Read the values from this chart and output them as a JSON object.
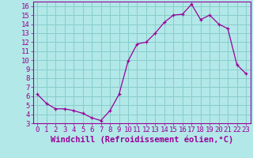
{
  "x": [
    0,
    1,
    2,
    3,
    4,
    5,
    6,
    7,
    8,
    9,
    10,
    11,
    12,
    13,
    14,
    15,
    16,
    17,
    18,
    19,
    20,
    21,
    22,
    23
  ],
  "y": [
    6.2,
    5.2,
    4.6,
    4.6,
    4.4,
    4.1,
    3.6,
    3.3,
    4.4,
    6.2,
    9.9,
    11.8,
    12.0,
    13.0,
    14.2,
    15.0,
    15.1,
    16.2,
    14.5,
    15.0,
    14.0,
    13.5,
    9.5,
    8.5
  ],
  "line_color": "#990099",
  "marker": "+",
  "bg_color": "#b3e8e8",
  "grid_color": "#88cccc",
  "xlabel": "Windchill (Refroidissement éolien,°C)",
  "xlabel_color": "#990099",
  "tick_color": "#990099",
  "spine_color": "#990099",
  "xlim": [
    -0.5,
    23.5
  ],
  "ylim": [
    3,
    16.5
  ],
  "yticks": [
    3,
    4,
    5,
    6,
    7,
    8,
    9,
    10,
    11,
    12,
    13,
    14,
    15,
    16
  ],
  "xticks": [
    0,
    1,
    2,
    3,
    4,
    5,
    6,
    7,
    8,
    9,
    10,
    11,
    12,
    13,
    14,
    15,
    16,
    17,
    18,
    19,
    20,
    21,
    22,
    23
  ],
  "xlabel_fontsize": 7.5,
  "tick_fontsize": 6.5
}
